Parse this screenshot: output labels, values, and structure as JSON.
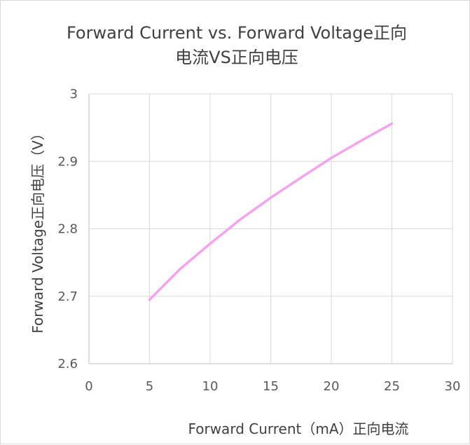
{
  "chart_data": {
    "type": "line",
    "title_lines": [
      "Forward Current vs. Forward Voltage正向",
      "电流VS正向电压"
    ],
    "xlabel": "Forward Current（mA）正向电流",
    "ylabel": "Forward Voltage正向电压（V）",
    "xlim": [
      0,
      30
    ],
    "ylim": [
      2.6,
      3
    ],
    "x_ticks": [
      0,
      5,
      10,
      15,
      20,
      25,
      30
    ],
    "x_tick_labels": [
      "0",
      "5",
      "10",
      "15",
      "20",
      "25",
      "30"
    ],
    "y_ticks": [
      2.6,
      2.7,
      2.8,
      2.9,
      3
    ],
    "y_tick_labels": [
      "2.6",
      "2.7",
      "2.8",
      "2.9",
      "3"
    ],
    "grid": true,
    "series": [
      {
        "color": "#f4a3ee",
        "x": [
          5,
          7.5,
          10,
          12.5,
          15,
          17.5,
          20,
          22.5,
          25
        ],
        "y": [
          2.695,
          2.74,
          2.778,
          2.814,
          2.846,
          2.876,
          2.905,
          2.931,
          2.956
        ]
      }
    ]
  }
}
